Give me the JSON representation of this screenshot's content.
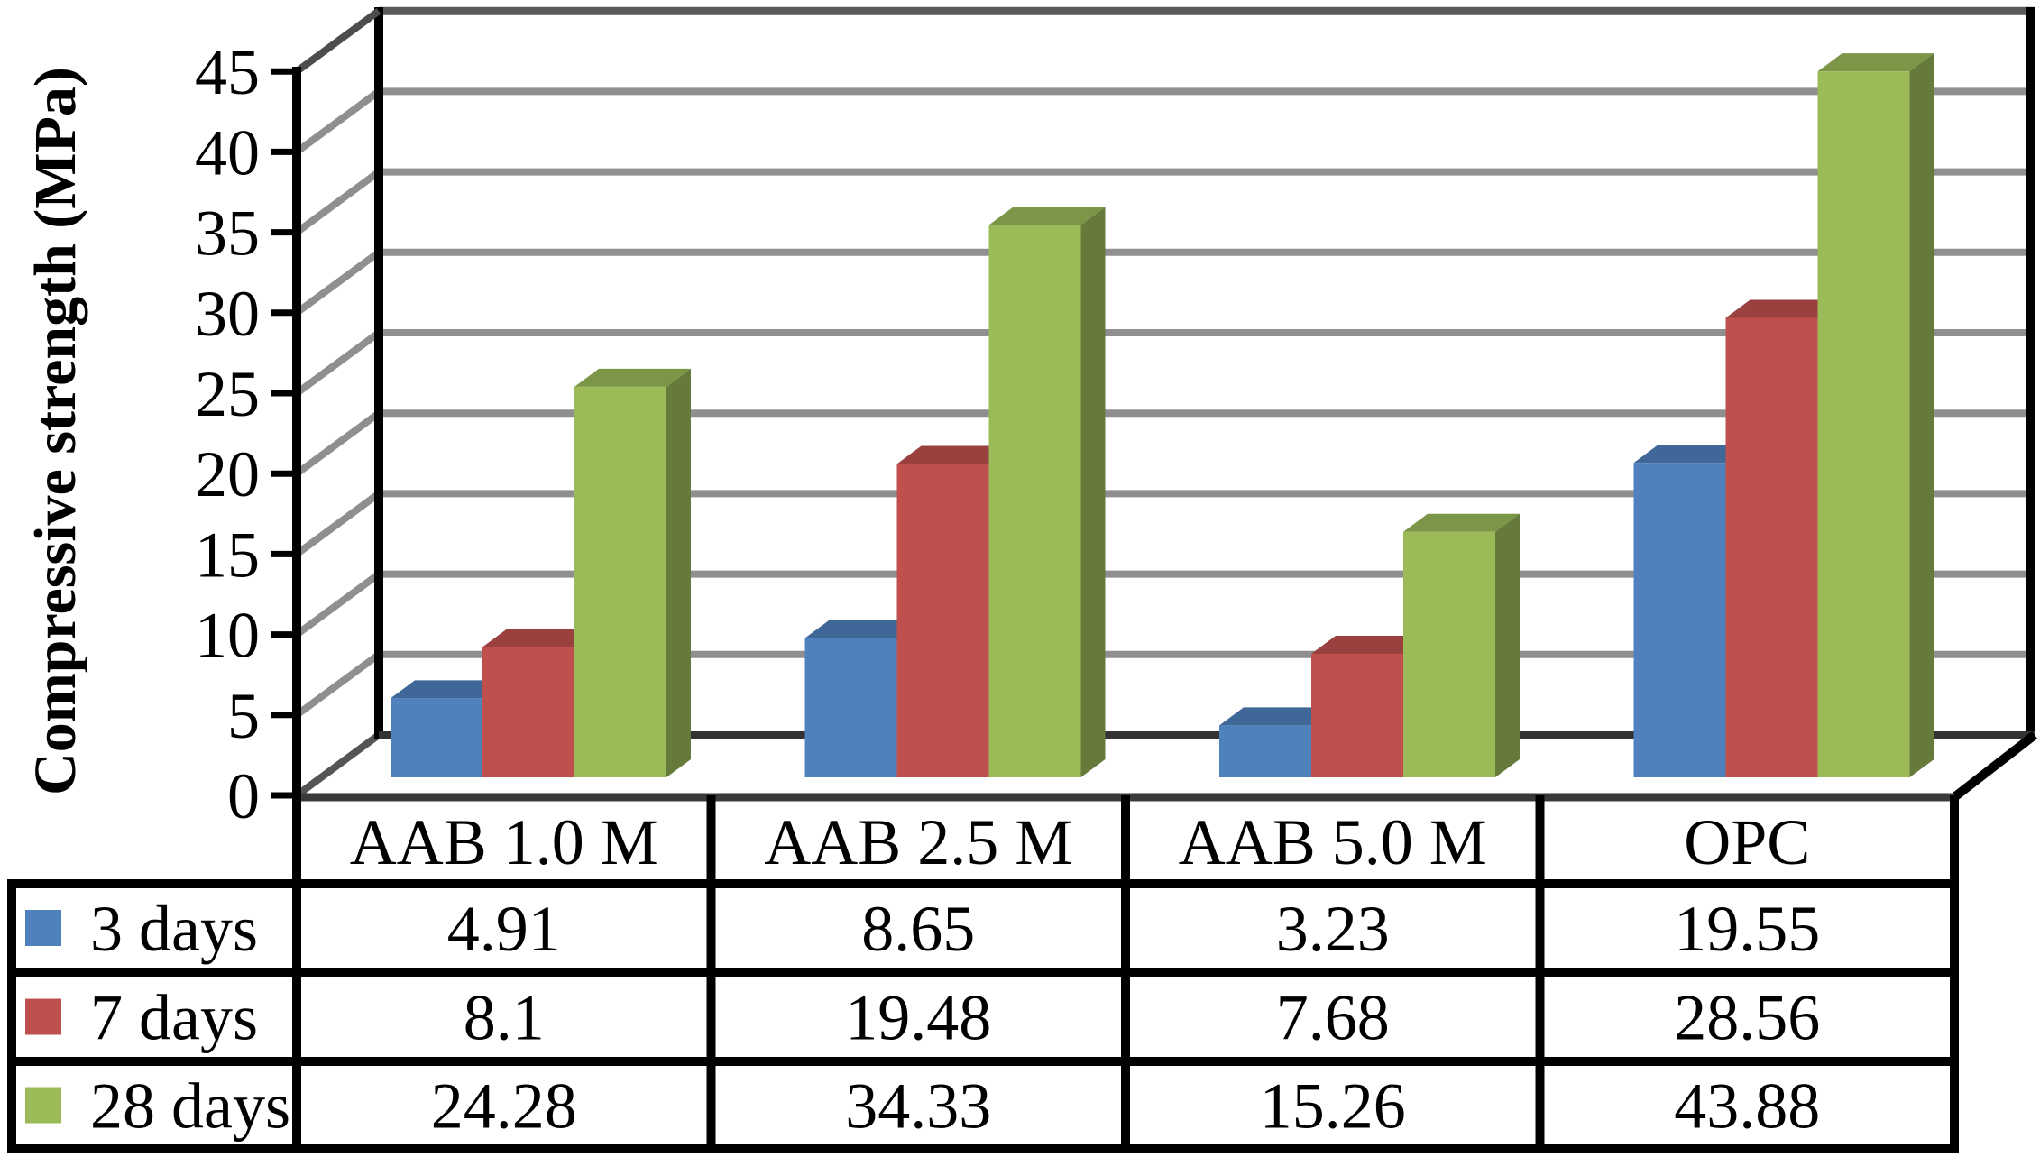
{
  "chart_data": {
    "type": "bar",
    "projection": "3d",
    "title": "",
    "ylabel": "Compressive strength (MPa)",
    "xlabel": "",
    "categories": [
      "AAB 1.0 M",
      "AAB 2.5 M",
      "AAB 5.0 M",
      "OPC"
    ],
    "series": [
      {
        "name": "3 days",
        "color": "#4F81BD",
        "values": [
          4.91,
          8.65,
          3.23,
          19.55
        ],
        "labels": [
          "4.91",
          "8.65",
          "3.23",
          "19.55"
        ]
      },
      {
        "name": "7 days",
        "color": "#C0504D",
        "values": [
          8.1,
          19.48,
          7.68,
          28.56
        ],
        "labels": [
          "8.1",
          "19.48",
          "7.68",
          "28.56"
        ]
      },
      {
        "name": "28 days",
        "color": "#9BBB59",
        "values": [
          24.28,
          34.33,
          15.26,
          43.88
        ],
        "labels": [
          "24.28",
          "34.33",
          "15.26",
          "43.88"
        ]
      }
    ],
    "ylim": [
      0,
      45
    ],
    "ytick_step": 5,
    "ytick_labels": [
      "0",
      "5",
      "10",
      "15",
      "20",
      "25",
      "30",
      "35",
      "40",
      "45"
    ],
    "grid": true,
    "legend_position": "data-table-left",
    "data_table_shown": true,
    "colors": {
      "gridline": "#8f8f8f",
      "top_gridline": "#5a5a5a",
      "axis": "#000000",
      "floor_edge": "#3a3a3a",
      "text": "#000000"
    }
  }
}
